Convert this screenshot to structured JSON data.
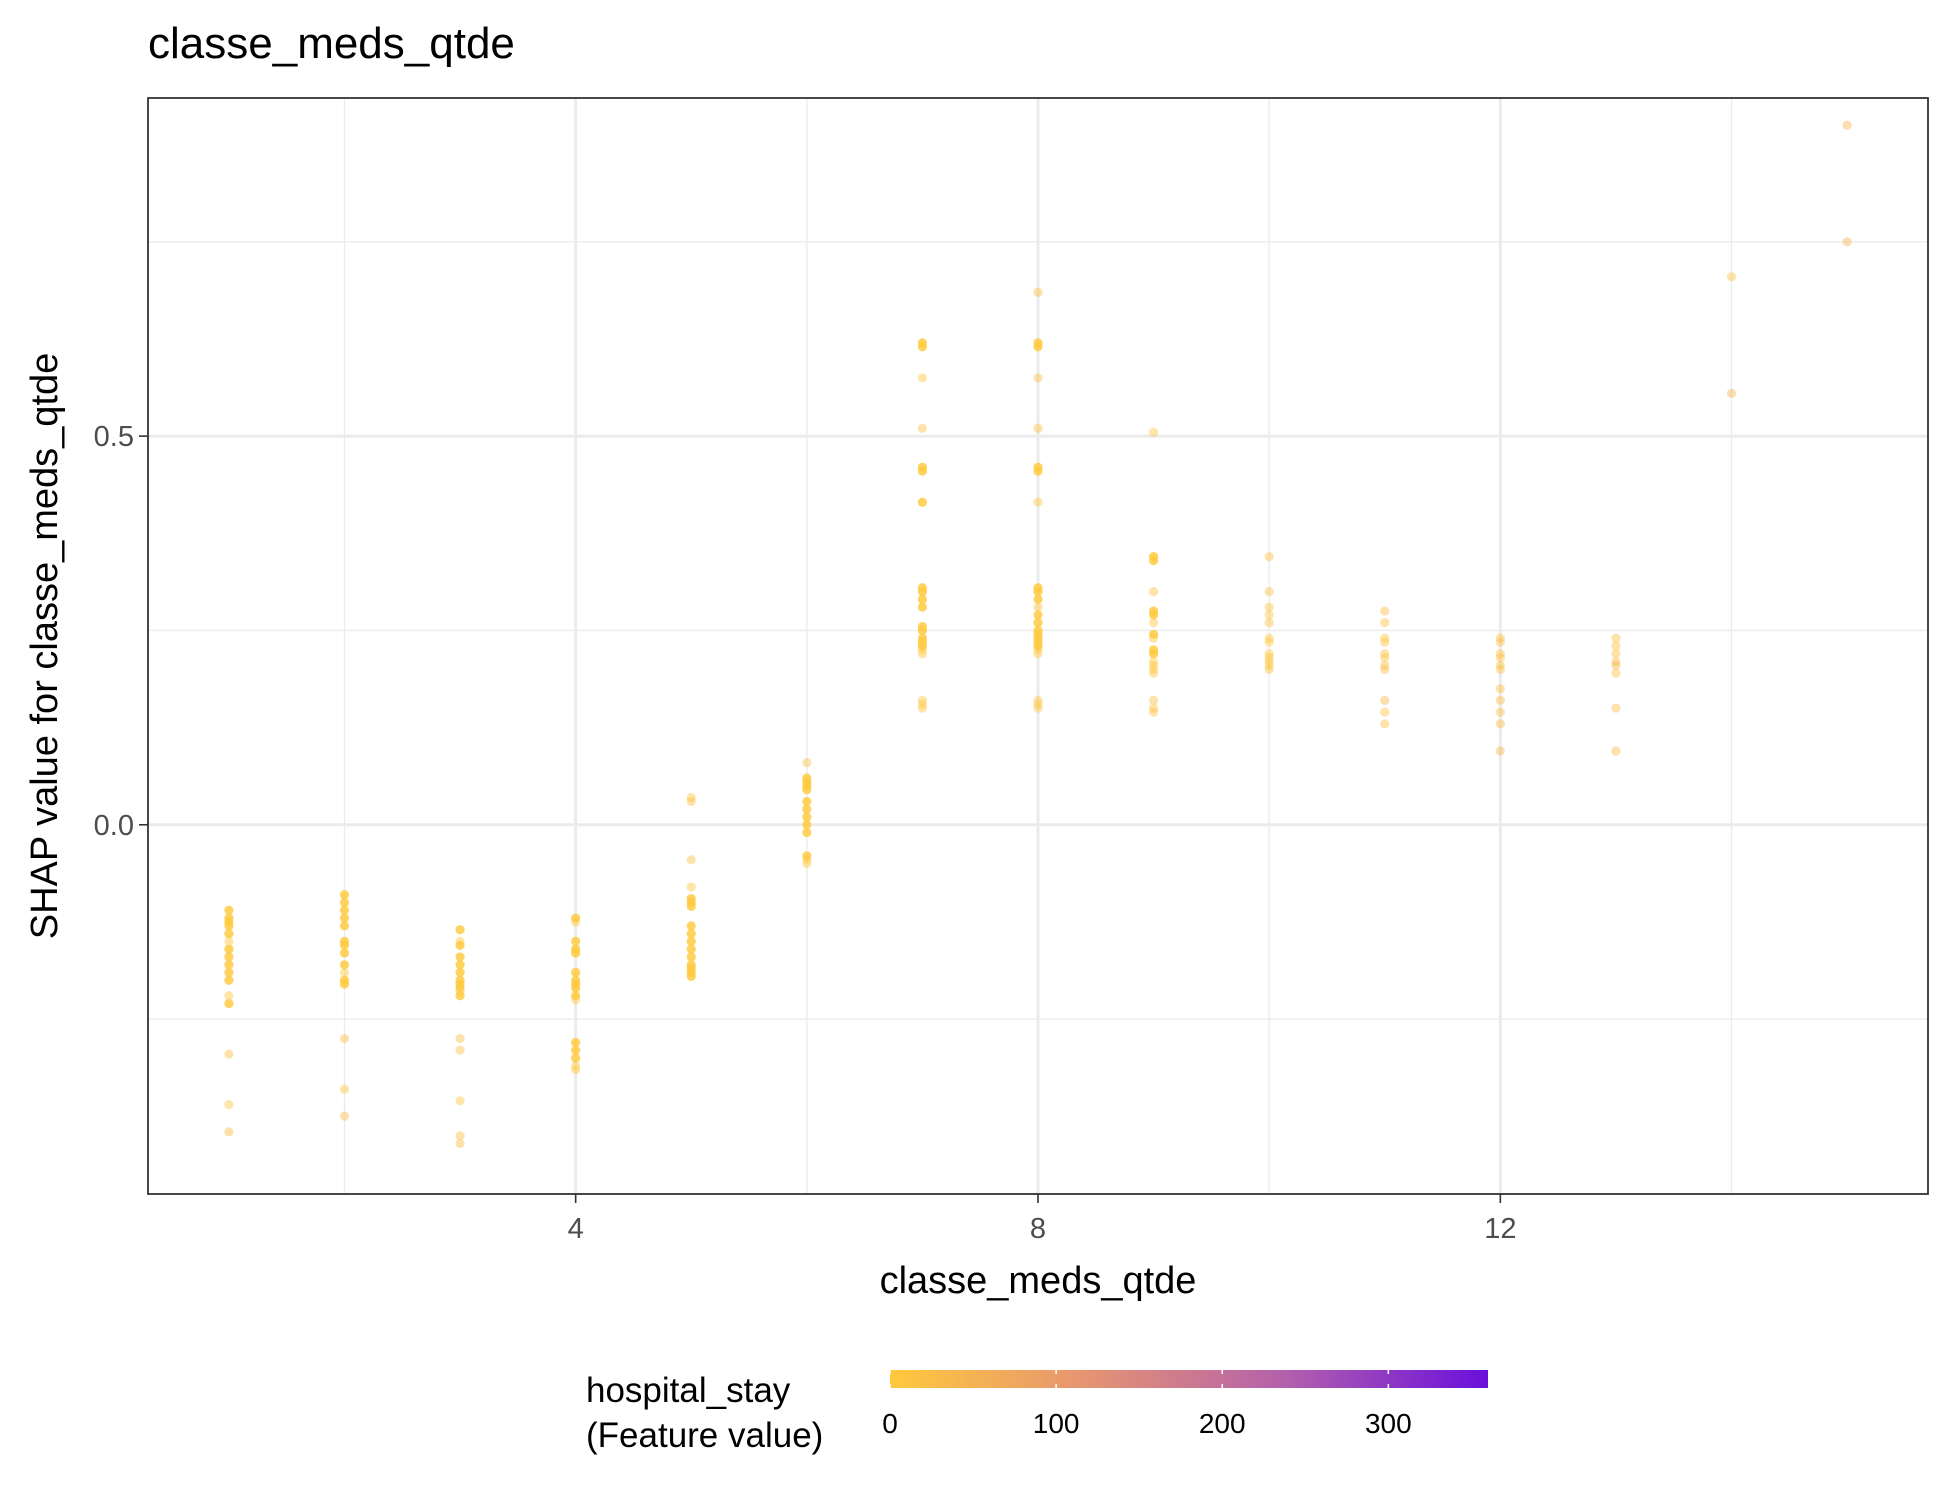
{
  "chart_data": {
    "type": "scatter",
    "title": "classe_meds_qtde",
    "xlabel": "classe_meds_qtde",
    "ylabel": "SHAP value for classe_meds_qtde",
    "xlim": [
      0.3,
      15.7
    ],
    "ylim": [
      -0.475,
      0.935
    ],
    "x_ticks": [
      4,
      8,
      12
    ],
    "x_tick_labels": [
      "4",
      "8",
      "12"
    ],
    "y_ticks": [
      0.0,
      0.5
    ],
    "y_tick_labels": [
      "0.0",
      "0.5"
    ],
    "grid": true,
    "legend": {
      "title_lines": [
        "hospital_stay",
        "(Feature value)"
      ],
      "placement": "bottom",
      "type": "colorbar",
      "range": [
        0,
        360
      ],
      "ticks": [
        0,
        100,
        200,
        300
      ],
      "tick_labels": [
        "0",
        "100",
        "200",
        "300"
      ],
      "colors": [
        "#ffc93c",
        "#e59373",
        "#b25fad",
        "#6a0fdc"
      ]
    },
    "points": [
      {
        "x": 1,
        "y": -0.11,
        "c": 0
      },
      {
        "x": 1,
        "y": -0.12,
        "c": 0
      },
      {
        "x": 1,
        "y": -0.125,
        "c": 0
      },
      {
        "x": 1,
        "y": -0.13,
        "c": 0
      },
      {
        "x": 1,
        "y": -0.14,
        "c": 0
      },
      {
        "x": 1,
        "y": -0.15,
        "c": 5
      },
      {
        "x": 1,
        "y": -0.16,
        "c": 0
      },
      {
        "x": 1,
        "y": -0.17,
        "c": 0
      },
      {
        "x": 1,
        "y": -0.18,
        "c": 0
      },
      {
        "x": 1,
        "y": -0.19,
        "c": 0
      },
      {
        "x": 1,
        "y": -0.2,
        "c": 0
      },
      {
        "x": 1,
        "y": -0.22,
        "c": 5
      },
      {
        "x": 1,
        "y": -0.23,
        "c": 0
      },
      {
        "x": 1,
        "y": -0.295,
        "c": 20
      },
      {
        "x": 1,
        "y": -0.36,
        "c": 10
      },
      {
        "x": 1,
        "y": -0.395,
        "c": 30
      },
      {
        "x": 2,
        "y": -0.09,
        "c": 0
      },
      {
        "x": 2,
        "y": -0.1,
        "c": 0
      },
      {
        "x": 2,
        "y": -0.11,
        "c": 0
      },
      {
        "x": 2,
        "y": -0.12,
        "c": 0
      },
      {
        "x": 2,
        "y": -0.13,
        "c": 0
      },
      {
        "x": 2,
        "y": -0.15,
        "c": 0
      },
      {
        "x": 2,
        "y": -0.155,
        "c": 0
      },
      {
        "x": 2,
        "y": -0.165,
        "c": 0
      },
      {
        "x": 2,
        "y": -0.18,
        "c": 0
      },
      {
        "x": 2,
        "y": -0.19,
        "c": 5
      },
      {
        "x": 2,
        "y": -0.2,
        "c": 0
      },
      {
        "x": 2,
        "y": -0.205,
        "c": 0
      },
      {
        "x": 2,
        "y": -0.275,
        "c": 20
      },
      {
        "x": 2,
        "y": -0.34,
        "c": 10
      },
      {
        "x": 2,
        "y": -0.375,
        "c": 30
      },
      {
        "x": 3,
        "y": -0.135,
        "c": 0
      },
      {
        "x": 3,
        "y": -0.15,
        "c": 5
      },
      {
        "x": 3,
        "y": -0.155,
        "c": 0
      },
      {
        "x": 3,
        "y": -0.17,
        "c": 0
      },
      {
        "x": 3,
        "y": -0.18,
        "c": 0
      },
      {
        "x": 3,
        "y": -0.19,
        "c": 0
      },
      {
        "x": 3,
        "y": -0.2,
        "c": 0
      },
      {
        "x": 3,
        "y": -0.205,
        "c": 0
      },
      {
        "x": 3,
        "y": -0.21,
        "c": 0
      },
      {
        "x": 3,
        "y": -0.215,
        "c": 5
      },
      {
        "x": 3,
        "y": -0.22,
        "c": 0
      },
      {
        "x": 3,
        "y": -0.275,
        "c": 20
      },
      {
        "x": 3,
        "y": -0.29,
        "c": 20
      },
      {
        "x": 3,
        "y": -0.355,
        "c": 10
      },
      {
        "x": 3,
        "y": -0.4,
        "c": 25
      },
      {
        "x": 3,
        "y": -0.41,
        "c": 30
      },
      {
        "x": 4,
        "y": -0.12,
        "c": 0
      },
      {
        "x": 4,
        "y": -0.125,
        "c": 5
      },
      {
        "x": 4,
        "y": -0.15,
        "c": 0
      },
      {
        "x": 4,
        "y": -0.16,
        "c": 0
      },
      {
        "x": 4,
        "y": -0.165,
        "c": 0
      },
      {
        "x": 4,
        "y": -0.19,
        "c": 0
      },
      {
        "x": 4,
        "y": -0.2,
        "c": 0
      },
      {
        "x": 4,
        "y": -0.205,
        "c": 0
      },
      {
        "x": 4,
        "y": -0.21,
        "c": 0
      },
      {
        "x": 4,
        "y": -0.22,
        "c": 0
      },
      {
        "x": 4,
        "y": -0.225,
        "c": 5
      },
      {
        "x": 4,
        "y": -0.28,
        "c": 0
      },
      {
        "x": 4,
        "y": -0.29,
        "c": 0
      },
      {
        "x": 4,
        "y": -0.3,
        "c": 0
      },
      {
        "x": 4,
        "y": -0.31,
        "c": 5
      },
      {
        "x": 4,
        "y": -0.315,
        "c": 5
      },
      {
        "x": 5,
        "y": 0.035,
        "c": 15
      },
      {
        "x": 5,
        "y": 0.03,
        "c": 15
      },
      {
        "x": 5,
        "y": -0.045,
        "c": 20
      },
      {
        "x": 5,
        "y": -0.08,
        "c": 10
      },
      {
        "x": 5,
        "y": -0.095,
        "c": 0
      },
      {
        "x": 5,
        "y": -0.1,
        "c": 0
      },
      {
        "x": 5,
        "y": -0.105,
        "c": 0
      },
      {
        "x": 5,
        "y": -0.13,
        "c": 0
      },
      {
        "x": 5,
        "y": -0.14,
        "c": 0
      },
      {
        "x": 5,
        "y": -0.15,
        "c": 0
      },
      {
        "x": 5,
        "y": -0.16,
        "c": 0
      },
      {
        "x": 5,
        "y": -0.17,
        "c": 0
      },
      {
        "x": 5,
        "y": -0.18,
        "c": 0
      },
      {
        "x": 5,
        "y": -0.185,
        "c": 0
      },
      {
        "x": 5,
        "y": -0.19,
        "c": 0
      },
      {
        "x": 5,
        "y": -0.195,
        "c": 0
      },
      {
        "x": 6,
        "y": 0.08,
        "c": 25
      },
      {
        "x": 6,
        "y": 0.06,
        "c": 0
      },
      {
        "x": 6,
        "y": 0.055,
        "c": 0
      },
      {
        "x": 6,
        "y": 0.05,
        "c": 0
      },
      {
        "x": 6,
        "y": 0.045,
        "c": 0
      },
      {
        "x": 6,
        "y": 0.03,
        "c": 0
      },
      {
        "x": 6,
        "y": 0.02,
        "c": 0
      },
      {
        "x": 6,
        "y": 0.01,
        "c": 0
      },
      {
        "x": 6,
        "y": 0.0,
        "c": 0
      },
      {
        "x": 6,
        "y": -0.01,
        "c": 0
      },
      {
        "x": 6,
        "y": -0.04,
        "c": 0
      },
      {
        "x": 6,
        "y": -0.045,
        "c": 5
      },
      {
        "x": 6,
        "y": -0.05,
        "c": 5
      },
      {
        "x": 7,
        "y": 0.62,
        "c": 0
      },
      {
        "x": 7,
        "y": 0.615,
        "c": 0
      },
      {
        "x": 7,
        "y": 0.575,
        "c": 5
      },
      {
        "x": 7,
        "y": 0.51,
        "c": 15
      },
      {
        "x": 7,
        "y": 0.46,
        "c": 0
      },
      {
        "x": 7,
        "y": 0.455,
        "c": 0
      },
      {
        "x": 7,
        "y": 0.415,
        "c": 0
      },
      {
        "x": 7,
        "y": 0.305,
        "c": 0
      },
      {
        "x": 7,
        "y": 0.3,
        "c": 0
      },
      {
        "x": 7,
        "y": 0.29,
        "c": 0
      },
      {
        "x": 7,
        "y": 0.28,
        "c": 0
      },
      {
        "x": 7,
        "y": 0.255,
        "c": 0
      },
      {
        "x": 7,
        "y": 0.25,
        "c": 0
      },
      {
        "x": 7,
        "y": 0.24,
        "c": 0
      },
      {
        "x": 7,
        "y": 0.235,
        "c": 0
      },
      {
        "x": 7,
        "y": 0.23,
        "c": 0
      },
      {
        "x": 7,
        "y": 0.225,
        "c": 5
      },
      {
        "x": 7,
        "y": 0.22,
        "c": 5
      },
      {
        "x": 7,
        "y": 0.16,
        "c": 10
      },
      {
        "x": 7,
        "y": 0.155,
        "c": 10
      },
      {
        "x": 7,
        "y": 0.15,
        "c": 5
      },
      {
        "x": 8,
        "y": 0.685,
        "c": 25
      },
      {
        "x": 8,
        "y": 0.62,
        "c": 0
      },
      {
        "x": 8,
        "y": 0.615,
        "c": 0
      },
      {
        "x": 8,
        "y": 0.575,
        "c": 20
      },
      {
        "x": 8,
        "y": 0.51,
        "c": 15
      },
      {
        "x": 8,
        "y": 0.46,
        "c": 0
      },
      {
        "x": 8,
        "y": 0.455,
        "c": 0
      },
      {
        "x": 8,
        "y": 0.415,
        "c": 5
      },
      {
        "x": 8,
        "y": 0.305,
        "c": 0
      },
      {
        "x": 8,
        "y": 0.3,
        "c": 0
      },
      {
        "x": 8,
        "y": 0.29,
        "c": 0
      },
      {
        "x": 8,
        "y": 0.28,
        "c": 5
      },
      {
        "x": 8,
        "y": 0.27,
        "c": 0
      },
      {
        "x": 8,
        "y": 0.26,
        "c": 0
      },
      {
        "x": 8,
        "y": 0.25,
        "c": 0
      },
      {
        "x": 8,
        "y": 0.245,
        "c": 0
      },
      {
        "x": 8,
        "y": 0.24,
        "c": 0
      },
      {
        "x": 8,
        "y": 0.235,
        "c": 0
      },
      {
        "x": 8,
        "y": 0.23,
        "c": 0
      },
      {
        "x": 8,
        "y": 0.225,
        "c": 5
      },
      {
        "x": 8,
        "y": 0.22,
        "c": 5
      },
      {
        "x": 8,
        "y": 0.16,
        "c": 10
      },
      {
        "x": 8,
        "y": 0.155,
        "c": 10
      },
      {
        "x": 8,
        "y": 0.15,
        "c": 10
      },
      {
        "x": 9,
        "y": 0.505,
        "c": 10
      },
      {
        "x": 9,
        "y": 0.345,
        "c": 0
      },
      {
        "x": 9,
        "y": 0.34,
        "c": 0
      },
      {
        "x": 9,
        "y": 0.3,
        "c": 15
      },
      {
        "x": 9,
        "y": 0.275,
        "c": 0
      },
      {
        "x": 9,
        "y": 0.27,
        "c": 0
      },
      {
        "x": 9,
        "y": 0.26,
        "c": 5
      },
      {
        "x": 9,
        "y": 0.245,
        "c": 0
      },
      {
        "x": 9,
        "y": 0.24,
        "c": 5
      },
      {
        "x": 9,
        "y": 0.225,
        "c": 0
      },
      {
        "x": 9,
        "y": 0.22,
        "c": 0
      },
      {
        "x": 9,
        "y": 0.21,
        "c": 5
      },
      {
        "x": 9,
        "y": 0.205,
        "c": 10
      },
      {
        "x": 9,
        "y": 0.2,
        "c": 10
      },
      {
        "x": 9,
        "y": 0.195,
        "c": 10
      },
      {
        "x": 9,
        "y": 0.16,
        "c": 20
      },
      {
        "x": 9,
        "y": 0.15,
        "c": 10
      },
      {
        "x": 9,
        "y": 0.145,
        "c": 15
      },
      {
        "x": 10,
        "y": 0.345,
        "c": 20
      },
      {
        "x": 10,
        "y": 0.3,
        "c": 20
      },
      {
        "x": 10,
        "y": 0.28,
        "c": 10
      },
      {
        "x": 10,
        "y": 0.27,
        "c": 10
      },
      {
        "x": 10,
        "y": 0.26,
        "c": 15
      },
      {
        "x": 10,
        "y": 0.24,
        "c": 5
      },
      {
        "x": 10,
        "y": 0.235,
        "c": 5
      },
      {
        "x": 10,
        "y": 0.22,
        "c": 10
      },
      {
        "x": 10,
        "y": 0.215,
        "c": 10
      },
      {
        "x": 10,
        "y": 0.21,
        "c": 10
      },
      {
        "x": 10,
        "y": 0.205,
        "c": 10
      },
      {
        "x": 10,
        "y": 0.2,
        "c": 15
      },
      {
        "x": 11,
        "y": 0.275,
        "c": 20
      },
      {
        "x": 11,
        "y": 0.26,
        "c": 15
      },
      {
        "x": 11,
        "y": 0.24,
        "c": 10
      },
      {
        "x": 11,
        "y": 0.235,
        "c": 10
      },
      {
        "x": 11,
        "y": 0.22,
        "c": 15
      },
      {
        "x": 11,
        "y": 0.215,
        "c": 10
      },
      {
        "x": 11,
        "y": 0.205,
        "c": 25
      },
      {
        "x": 11,
        "y": 0.2,
        "c": 30
      },
      {
        "x": 11,
        "y": 0.16,
        "c": 35
      },
      {
        "x": 11,
        "y": 0.145,
        "c": 15
      },
      {
        "x": 11,
        "y": 0.13,
        "c": 20
      },
      {
        "x": 12,
        "y": 0.24,
        "c": 15
      },
      {
        "x": 12,
        "y": 0.235,
        "c": 15
      },
      {
        "x": 12,
        "y": 0.22,
        "c": 20
      },
      {
        "x": 12,
        "y": 0.215,
        "c": 15
      },
      {
        "x": 12,
        "y": 0.205,
        "c": 25
      },
      {
        "x": 12,
        "y": 0.2,
        "c": 20
      },
      {
        "x": 12,
        "y": 0.175,
        "c": 20
      },
      {
        "x": 12,
        "y": 0.16,
        "c": 30
      },
      {
        "x": 12,
        "y": 0.145,
        "c": 25
      },
      {
        "x": 12,
        "y": 0.13,
        "c": 25
      },
      {
        "x": 12,
        "y": 0.095,
        "c": 35
      },
      {
        "x": 13,
        "y": 0.24,
        "c": 15
      },
      {
        "x": 13,
        "y": 0.23,
        "c": 15
      },
      {
        "x": 13,
        "y": 0.22,
        "c": 20
      },
      {
        "x": 13,
        "y": 0.21,
        "c": 30
      },
      {
        "x": 13,
        "y": 0.205,
        "c": 35
      },
      {
        "x": 13,
        "y": 0.195,
        "c": 15
      },
      {
        "x": 13,
        "y": 0.15,
        "c": 25
      },
      {
        "x": 13,
        "y": 0.095,
        "c": 30
      },
      {
        "x": 14,
        "y": 0.705,
        "c": 25
      },
      {
        "x": 14,
        "y": 0.555,
        "c": 45
      },
      {
        "x": 15,
        "y": 0.9,
        "c": 35
      },
      {
        "x": 15,
        "y": 0.75,
        "c": 40
      }
    ]
  }
}
